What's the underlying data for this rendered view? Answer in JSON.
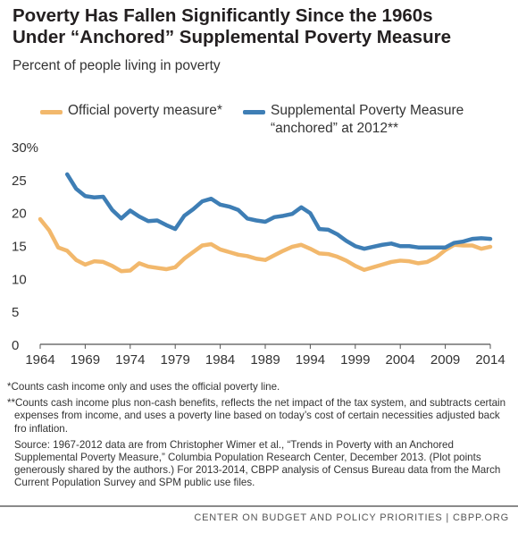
{
  "header": {
    "title_line1": "Poverty Has Fallen Significantly Since the 1960s",
    "title_line2": "Under “Anchored” Supplemental Poverty Measure",
    "subtitle": "Percent of people living in poverty"
  },
  "legend": {
    "official_label": "Official poverty measure*",
    "spm_label_line1": "Supplemental Poverty Measure",
    "spm_label_line2": "“anchored” at 2012**"
  },
  "colors": {
    "official": "#f2b86c",
    "spm": "#3e7eb5",
    "axis": "#555555"
  },
  "chart_data": {
    "type": "line",
    "title": "Poverty Has Fallen Significantly Since the 1960s Under “Anchored” Supplemental Poverty Measure",
    "ylabel": "Percent of people living in poverty",
    "xlim": [
      1964,
      2014
    ],
    "ylim": [
      0,
      30
    ],
    "xticks": [
      1964,
      1969,
      1974,
      1979,
      1984,
      1989,
      1994,
      1999,
      2004,
      2009,
      2014
    ],
    "yticks": [
      0,
      5,
      10,
      15,
      20,
      25,
      30
    ],
    "ytick_labels": [
      "0",
      "5",
      "10",
      "15",
      "20",
      "25",
      "30%"
    ],
    "grid": false,
    "legend_position": "top",
    "series": [
      {
        "name": "Official poverty measure*",
        "color": "#f2b86c",
        "x": [
          1964,
          1965,
          1966,
          1967,
          1968,
          1969,
          1970,
          1971,
          1972,
          1973,
          1974,
          1975,
          1976,
          1977,
          1978,
          1979,
          1980,
          1981,
          1982,
          1983,
          1984,
          1985,
          1986,
          1987,
          1988,
          1989,
          1990,
          1991,
          1992,
          1993,
          1994,
          1995,
          1996,
          1997,
          1998,
          1999,
          2000,
          2001,
          2002,
          2003,
          2004,
          2005,
          2006,
          2007,
          2008,
          2009,
          2010,
          2011,
          2012,
          2013,
          2014
        ],
        "y": [
          19.0,
          17.3,
          14.7,
          14.2,
          12.8,
          12.1,
          12.6,
          12.5,
          11.9,
          11.1,
          11.2,
          12.3,
          11.8,
          11.6,
          11.4,
          11.7,
          13.0,
          14.0,
          15.0,
          15.2,
          14.4,
          14.0,
          13.6,
          13.4,
          13.0,
          12.8,
          13.5,
          14.2,
          14.8,
          15.1,
          14.5,
          13.8,
          13.7,
          13.3,
          12.7,
          11.9,
          11.3,
          11.7,
          12.1,
          12.5,
          12.7,
          12.6,
          12.3,
          12.5,
          13.2,
          14.3,
          15.1,
          15.0,
          15.0,
          14.5,
          14.8
        ]
      },
      {
        "name": "Supplemental Poverty Measure “anchored” at 2012**",
        "color": "#3e7eb5",
        "x": [
          1967,
          1968,
          1969,
          1970,
          1971,
          1972,
          1973,
          1974,
          1975,
          1976,
          1977,
          1978,
          1979,
          1980,
          1981,
          1982,
          1983,
          1984,
          1985,
          1986,
          1987,
          1988,
          1989,
          1990,
          1991,
          1992,
          1993,
          1994,
          1995,
          1996,
          1997,
          1998,
          1999,
          2000,
          2001,
          2002,
          2003,
          2004,
          2005,
          2006,
          2007,
          2008,
          2009,
          2010,
          2011,
          2012,
          2013,
          2014
        ],
        "y": [
          25.8,
          23.6,
          22.5,
          22.3,
          22.4,
          20.4,
          19.1,
          20.3,
          19.4,
          18.7,
          18.8,
          18.1,
          17.5,
          19.5,
          20.5,
          21.7,
          22.1,
          21.2,
          20.9,
          20.4,
          19.1,
          18.8,
          18.6,
          19.3,
          19.5,
          19.8,
          20.8,
          19.9,
          17.5,
          17.4,
          16.7,
          15.7,
          14.9,
          14.5,
          14.8,
          15.1,
          15.3,
          14.9,
          14.9,
          14.7,
          14.7,
          14.7,
          14.7,
          15.4,
          15.6,
          16.0,
          16.1,
          16.0
        ]
      }
    ]
  },
  "notes": {
    "note1": "*Counts cash income only and uses the official poverty line.",
    "note2": "**Counts cash income plus non-cash benefits, reflects the net impact of the tax system, and subtracts certain expenses from income, and uses a poverty line based on today’s cost of certain necessities adjusted back fro inflation.",
    "source": "Source: 1967-2012 data are from Christopher Wimer et al., “Trends in Poverty with an Anchored Supplemental Poverty Measure,” Columbia Population Research Center, December 2013. (Plot points generously shared by the authors.) For 2013-2014, CBPP analysis of Census Bureau data from the March Current Population Survey and SPM public use files."
  },
  "footer": {
    "text": "CENTER ON BUDGET AND POLICY PRIORITIES | CBPP.ORG"
  }
}
